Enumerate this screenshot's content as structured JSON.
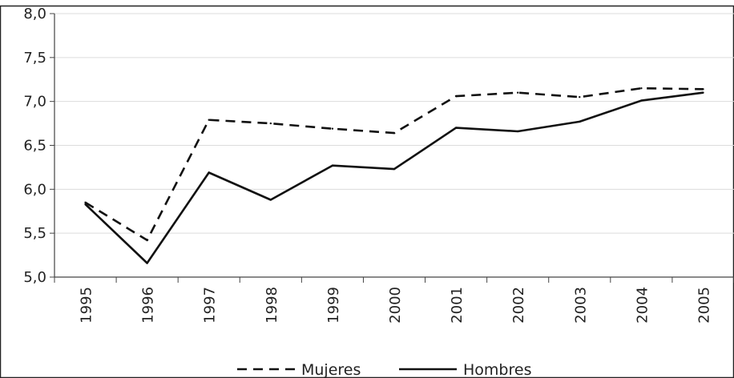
{
  "chart_data": {
    "type": "line",
    "title": "",
    "xlabel": "",
    "ylabel": "",
    "x": [
      "1995",
      "1996",
      "1997",
      "1998",
      "1999",
      "2000",
      "2001",
      "2002",
      "2003",
      "2004",
      "2005"
    ],
    "ylim": [
      5.0,
      8.0
    ],
    "y_ticks": [
      "5,0",
      "5,5",
      "6,0",
      "6,5",
      "7,0",
      "7,5",
      "8,0"
    ],
    "grid": true,
    "legend_position": "bottom",
    "series": [
      {
        "name": "Mujeres",
        "style": "dashed",
        "color": "#111111",
        "values": [
          5.85,
          5.42,
          6.79,
          6.75,
          6.69,
          6.64,
          7.06,
          7.1,
          7.05,
          7.15,
          7.14
        ]
      },
      {
        "name": "Hombres",
        "style": "solid",
        "color": "#111111",
        "values": [
          5.83,
          5.16,
          6.19,
          5.88,
          6.27,
          6.23,
          6.7,
          6.66,
          6.77,
          7.01,
          7.1
        ]
      }
    ]
  }
}
